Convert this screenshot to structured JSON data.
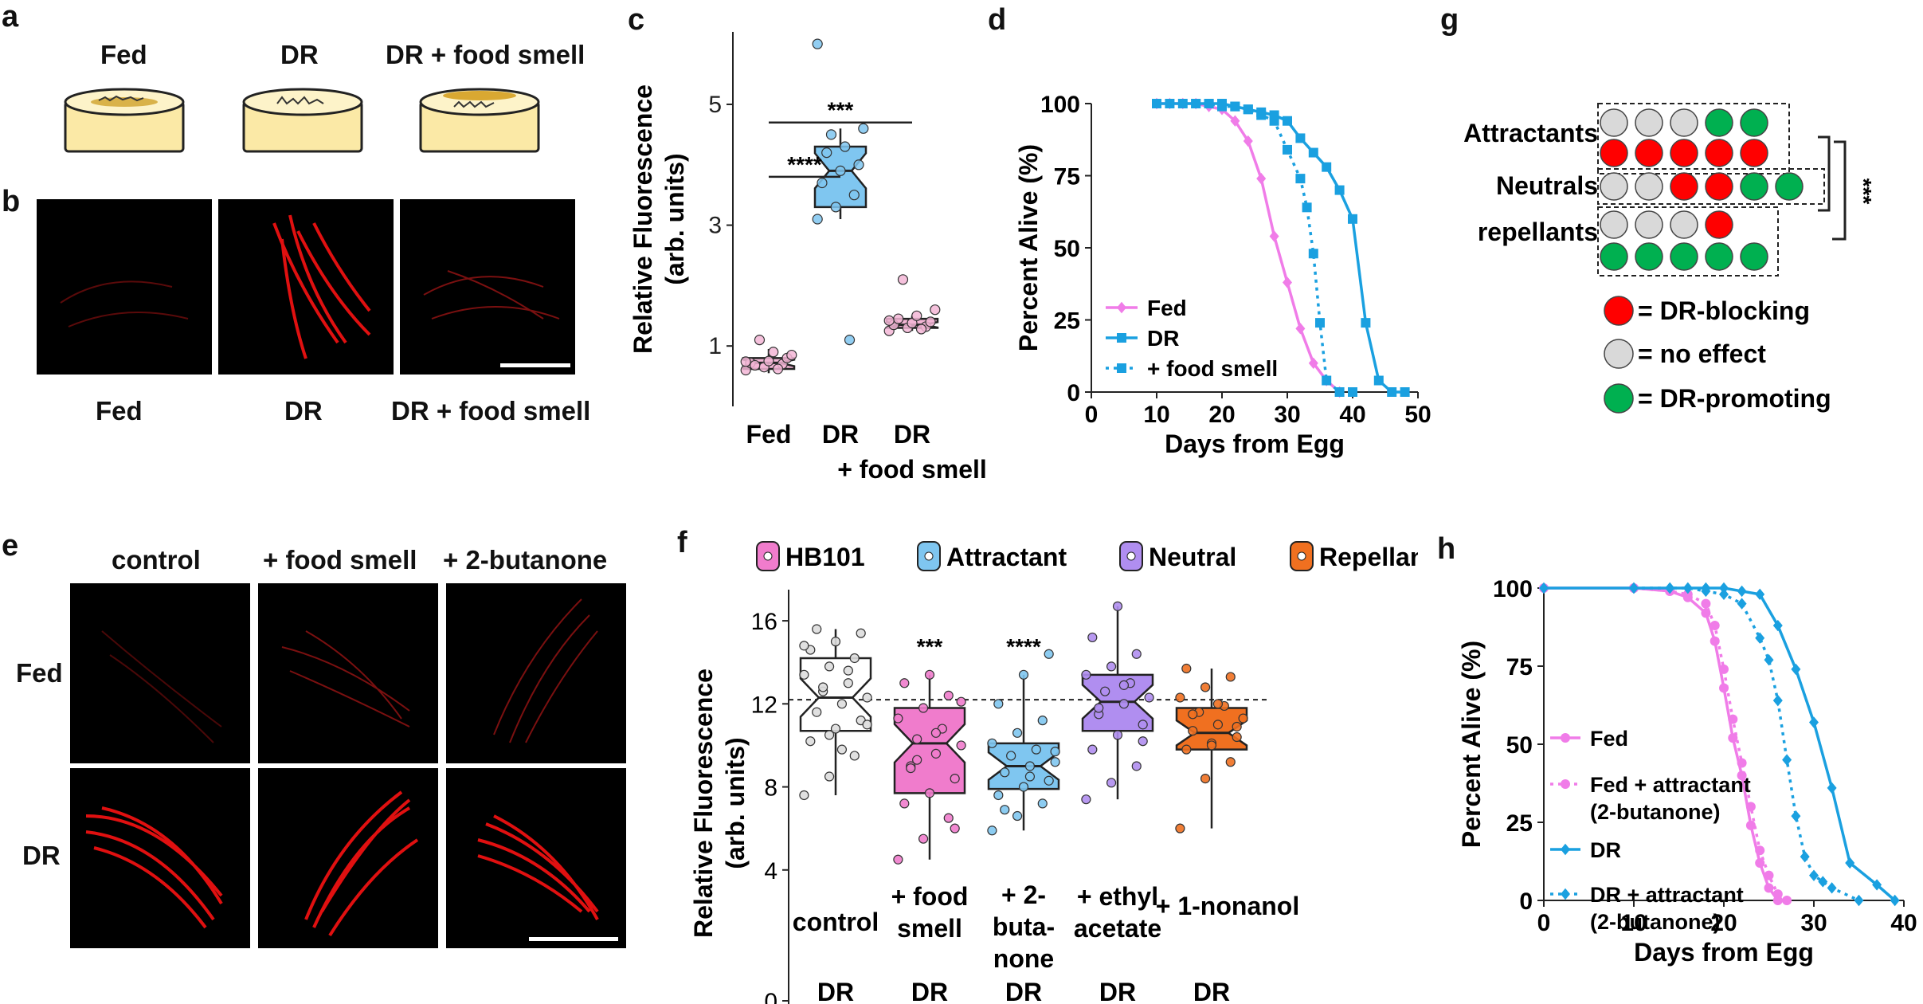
{
  "panels": {
    "a": {
      "label": "a",
      "dishes": [
        "Fed",
        "DR",
        "DR + food smell"
      ]
    },
    "b": {
      "label": "b",
      "images": [
        "Fed",
        "DR",
        "DR + food smell"
      ]
    },
    "c": {
      "label": "c"
    },
    "d": {
      "label": "d"
    },
    "e": {
      "label": "e",
      "cols": [
        "control",
        "+ food smell",
        "+ 2-butanone"
      ],
      "rows": [
        "Fed",
        "DR"
      ]
    },
    "f": {
      "label": "f"
    },
    "g": {
      "label": "g",
      "rows": [
        "Attractants",
        "Neutrals",
        "repellants"
      ],
      "sig": "***",
      "legend": [
        {
          "label": "= DR-blocking",
          "color": "#ff0000"
        },
        {
          "label": "= no effect",
          "color": "#d9d9d9"
        },
        {
          "label": "= DR-promoting",
          "color": "#00b050"
        }
      ],
      "circles": [
        [
          "grey",
          "grey",
          "grey",
          "green",
          "green"
        ],
        [
          "red",
          "red",
          "red",
          "red",
          "red"
        ],
        [
          "grey",
          "grey",
          "red",
          "red",
          "green",
          "green"
        ],
        [
          "grey",
          "grey",
          "grey",
          "red"
        ],
        [
          "green",
          "green",
          "green",
          "green",
          "green"
        ]
      ]
    },
    "h": {
      "label": "h"
    }
  },
  "chart_data": [
    {
      "id": "c",
      "type": "box",
      "ylabel": "Relative Fluorescence\n(arb. units)",
      "yticks": [
        1,
        3,
        5
      ],
      "ylim": [
        0,
        6.2
      ],
      "categories": [
        "Fed",
        "DR",
        "DR\n+ food smell"
      ],
      "boxes": [
        {
          "name": "Fed",
          "q1": 0.62,
          "median": 0.72,
          "q3": 0.8,
          "wmin": 0.55,
          "wmax": 0.95,
          "color": "#f3b6d6",
          "points": [
            0.6,
            0.65,
            0.7,
            0.72,
            0.75,
            0.8,
            0.68,
            0.9,
            0.85,
            1.1,
            0.62,
            0.74
          ]
        },
        {
          "name": "DR",
          "q1": 3.3,
          "median": 3.9,
          "q3": 4.3,
          "wmin": 3.1,
          "wmax": 4.6,
          "color": "#7fc6f0",
          "points": [
            3.1,
            3.3,
            3.5,
            3.7,
            3.9,
            4.0,
            4.2,
            4.3,
            4.6,
            4.5,
            1.1,
            6.0
          ]
        },
        {
          "name": "DR + food smell",
          "q1": 1.3,
          "median": 1.35,
          "q3": 1.45,
          "wmin": 1.25,
          "wmax": 1.5,
          "color": "#f3b6d6",
          "points": [
            1.25,
            1.3,
            1.32,
            1.35,
            1.38,
            1.4,
            1.45,
            1.5,
            1.6,
            2.1,
            1.28,
            1.42
          ]
        }
      ],
      "sig": [
        {
          "label": "****",
          "from": 0,
          "to": 1,
          "y": 3.8
        },
        {
          "label": "***",
          "from": 0,
          "to": 2,
          "y": 4.7
        }
      ]
    },
    {
      "id": "d",
      "type": "line",
      "xlabel": "Days from Egg",
      "ylabel": "Percent Alive (%)",
      "xticks": [
        0,
        10,
        20,
        30,
        40,
        50
      ],
      "yticks": [
        0,
        25,
        50,
        75,
        100
      ],
      "xlim": [
        0,
        50
      ],
      "ylim": [
        0,
        100
      ],
      "series": [
        {
          "name": "Fed",
          "color": "#f07ce8",
          "dash": false,
          "marker": "diamond",
          "x": [
            10,
            12,
            14,
            16,
            18,
            20,
            22,
            24,
            26,
            28,
            30,
            32,
            34,
            36,
            38
          ],
          "y": [
            100,
            100,
            100,
            100,
            99,
            98,
            94,
            87,
            74,
            54,
            38,
            22,
            10,
            4,
            0
          ]
        },
        {
          "name": "DR",
          "color": "#1aa0e0",
          "dash": false,
          "marker": "square",
          "x": [
            10,
            12,
            14,
            16,
            18,
            20,
            22,
            24,
            26,
            28,
            30,
            32,
            34,
            36,
            38,
            40,
            42,
            44,
            46,
            48
          ],
          "y": [
            100,
            100,
            100,
            100,
            100,
            100,
            99,
            98,
            97,
            96,
            94,
            88,
            83,
            78,
            70,
            60,
            24,
            4,
            0,
            0
          ]
        },
        {
          "name": "+ food smell",
          "color": "#1aa0e0",
          "dash": true,
          "marker": "square",
          "x": [
            16,
            18,
            20,
            22,
            24,
            26,
            28,
            30,
            32,
            33,
            34,
            35,
            36,
            38,
            40
          ],
          "y": [
            100,
            100,
            99,
            99,
            98,
            96,
            94,
            84,
            74,
            64,
            48,
            24,
            4,
            0,
            0
          ]
        }
      ]
    },
    {
      "id": "f",
      "type": "box",
      "ylabel": "Relative Fluorescence\n(arb. units)",
      "yticks": [
        0,
        4,
        8,
        12,
        16
      ],
      "ylim": [
        0,
        17.5
      ],
      "categories": [
        "control",
        "+ food\nsmell",
        "+ 2-\nbuta-\nnone",
        "+ ethyl\nacetate",
        "+ 1-nonanol"
      ],
      "category_suffix": "DR",
      "reference_line": 12.2,
      "legend": [
        {
          "name": "HB101",
          "color": "#f07ccc"
        },
        {
          "name": "Attractant",
          "color": "#7fc6f0"
        },
        {
          "name": "Neutral",
          "color": "#b08ef0"
        },
        {
          "name": "Repellant",
          "color": "#f07020"
        }
      ],
      "boxes": [
        {
          "name": "control",
          "q1": 10.7,
          "median": 12.3,
          "q3": 14.2,
          "wmin": 7.6,
          "wmax": 15.6,
          "color": "#ffffff",
          "pt": "#dddddd",
          "points": [
            7.6,
            8.5,
            9.5,
            10.2,
            10.8,
            11.2,
            11.6,
            12,
            12.3,
            12.6,
            13,
            13.4,
            13.8,
            14.2,
            14.6,
            15,
            15.4,
            15.6,
            9.8,
            11,
            12.8,
            13.6,
            14.8,
            10.5
          ]
        },
        {
          "name": "+ food smell",
          "q1": 7.7,
          "median": 10.1,
          "q3": 11.8,
          "wmin": 4.5,
          "wmax": 13.4,
          "color": "#f07ccc",
          "pt": "#f07ccc",
          "sig": "***",
          "points": [
            4.5,
            5.5,
            6.5,
            7.2,
            7.7,
            8.4,
            9,
            9.6,
            10,
            10.3,
            10.8,
            11.3,
            11.8,
            12.4,
            13,
            13.4,
            6,
            8.9,
            10.6,
            12.1,
            9.3
          ]
        },
        {
          "name": "+ 2-butanone",
          "q1": 7.9,
          "median": 9,
          "q3": 10.1,
          "wmin": 5.9,
          "wmax": 13.4,
          "color": "#7fc6f0",
          "pt": "#7fc6f0",
          "sig": "****",
          "points": [
            5.9,
            6.6,
            7.2,
            7.6,
            8,
            8.3,
            8.7,
            9,
            9.2,
            9.5,
            9.8,
            10.1,
            10.6,
            11.2,
            12,
            13.4,
            14.4,
            6.9,
            8.5,
            9.7
          ]
        },
        {
          "name": "+ ethyl acetate",
          "q1": 10.7,
          "median": 12.1,
          "q3": 13.4,
          "wmin": 7.4,
          "wmax": 16.7,
          "color": "#b08ef0",
          "pt": "#b08ef0",
          "points": [
            7.4,
            8.2,
            9,
            9.8,
            10.5,
            11,
            11.5,
            12,
            12.3,
            12.6,
            13,
            13.4,
            13.8,
            14.4,
            15.2,
            16.7,
            10.2,
            11.8,
            12.9
          ]
        },
        {
          "name": "+ 1-nonanol",
          "q1": 9.8,
          "median": 10.6,
          "q3": 11.8,
          "wmin": 6,
          "wmax": 13.7,
          "color": "#f07020",
          "pt": "#f07020",
          "points": [
            6,
            8.4,
            9.2,
            9.8,
            10.1,
            10.4,
            10.7,
            11,
            11.3,
            11.6,
            11.9,
            12.3,
            12.8,
            13.3,
            13.7,
            10,
            10.9,
            11.5,
            12
          ]
        }
      ]
    },
    {
      "id": "h",
      "type": "line",
      "xlabel": "Days from Egg",
      "ylabel": "Percent Alive (%)",
      "xticks": [
        0,
        10,
        20,
        30,
        40
      ],
      "yticks": [
        0,
        25,
        50,
        75,
        100
      ],
      "xlim": [
        0,
        40
      ],
      "ylim": [
        0,
        100
      ],
      "series": [
        {
          "name": "Fed",
          "color": "#f07ce8",
          "dash": false,
          "marker": "circle",
          "x": [
            0,
            10,
            14,
            16,
            18,
            19,
            20,
            21,
            22,
            23,
            24,
            25,
            26
          ],
          "y": [
            100,
            100,
            99,
            97,
            92,
            83,
            68,
            52,
            40,
            24,
            12,
            4,
            0
          ]
        },
        {
          "name": "Fed + attractant\n(2-butanone)",
          "color": "#f07ce8",
          "dash": true,
          "marker": "circle",
          "x": [
            10,
            14,
            16,
            18,
            19,
            20,
            21,
            22,
            23,
            24,
            25,
            26,
            27
          ],
          "y": [
            100,
            99,
            98,
            95,
            88,
            74,
            58,
            44,
            30,
            16,
            8,
            2,
            0
          ]
        },
        {
          "name": "DR",
          "color": "#1aa0e0",
          "dash": false,
          "marker": "diamond",
          "x": [
            0,
            10,
            14,
            16,
            18,
            20,
            22,
            24,
            26,
            28,
            30,
            32,
            34,
            37,
            39
          ],
          "y": [
            100,
            100,
            100,
            100,
            100,
            100,
            99,
            98,
            88,
            74,
            57,
            36,
            12,
            5,
            0
          ]
        },
        {
          "name": "DR + attractant\n(2-butanone)",
          "color": "#1aa0e0",
          "dash": true,
          "marker": "diamond",
          "x": [
            10,
            14,
            16,
            18,
            20,
            22,
            24,
            25,
            26,
            27,
            28,
            29,
            30,
            31,
            32,
            35
          ],
          "y": [
            100,
            100,
            100,
            99,
            98,
            95,
            84,
            77,
            64,
            45,
            27,
            14,
            8,
            6,
            4,
            0
          ]
        }
      ]
    }
  ]
}
